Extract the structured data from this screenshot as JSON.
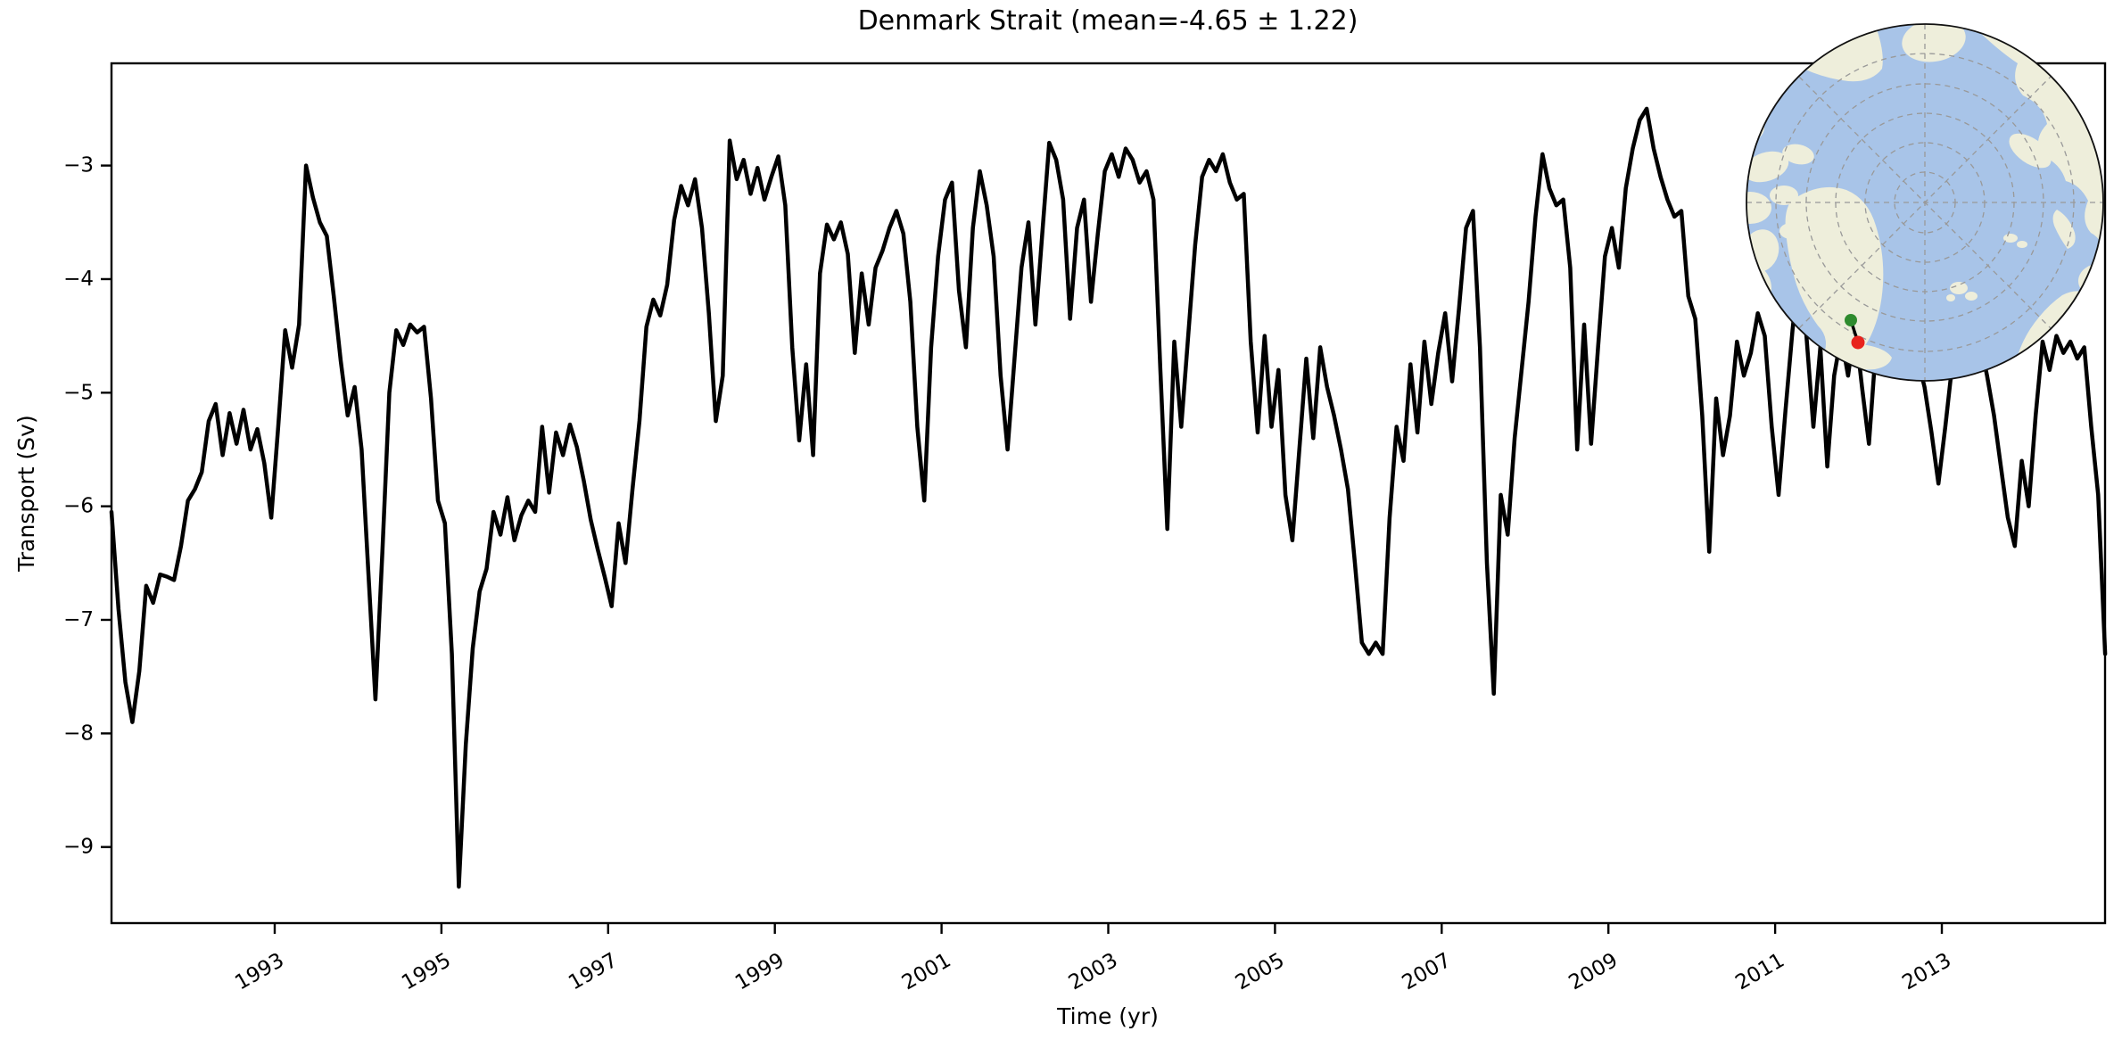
{
  "figure": {
    "background": "#ffffff",
    "title": "Denmark Strait (mean=-4.65 ± 1.22)"
  },
  "chart_data": {
    "type": "line",
    "title": "Denmark Strait (mean=-4.65 ± 1.22)",
    "xlabel": "Time (yr)",
    "ylabel": "Transport (Sv)",
    "legend": "none",
    "grid": "off",
    "line_color": "#000000",
    "line_width": 4.5,
    "xlim": [
      1991.042,
      2014.958
    ],
    "ylim": [
      -9.67,
      -2.1
    ],
    "x_start": 1991.042,
    "x_step": 0.0833333,
    "x_unit": "decimal year, monthly resolution Jan 1991 - Dec 2014",
    "xticks": [
      {
        "value": 1993,
        "label": "1993"
      },
      {
        "value": 1995,
        "label": "1995"
      },
      {
        "value": 1997,
        "label": "1997"
      },
      {
        "value": 1999,
        "label": "1999"
      },
      {
        "value": 2001,
        "label": "2001"
      },
      {
        "value": 2003,
        "label": "2003"
      },
      {
        "value": 2005,
        "label": "2005"
      },
      {
        "value": 2007,
        "label": "2007"
      },
      {
        "value": 2009,
        "label": "2009"
      },
      {
        "value": 2011,
        "label": "2011"
      },
      {
        "value": 2013,
        "label": "2013"
      }
    ],
    "yticks": [
      {
        "value": -3,
        "label": "−3"
      },
      {
        "value": -4,
        "label": "−4"
      },
      {
        "value": -5,
        "label": "−5"
      },
      {
        "value": -6,
        "label": "−6"
      },
      {
        "value": -7,
        "label": "−7"
      },
      {
        "value": -8,
        "label": "−8"
      },
      {
        "value": -9,
        "label": "−9"
      }
    ],
    "values": [
      -6.05,
      -6.9,
      -7.55,
      -7.9,
      -7.45,
      -6.7,
      -6.85,
      -6.6,
      -6.62,
      -6.65,
      -6.35,
      -5.95,
      -5.85,
      -5.7,
      -5.25,
      -5.1,
      -5.55,
      -5.18,
      -5.45,
      -5.15,
      -5.5,
      -5.32,
      -5.62,
      -6.1,
      -5.3,
      -4.45,
      -4.78,
      -4.4,
      -3.0,
      -3.28,
      -3.5,
      -3.62,
      -4.15,
      -4.72,
      -5.2,
      -4.95,
      -5.5,
      -6.6,
      -7.7,
      -6.4,
      -5.0,
      -4.45,
      -4.58,
      -4.4,
      -4.47,
      -4.42,
      -5.05,
      -5.95,
      -6.15,
      -7.3,
      -9.35,
      -8.1,
      -7.25,
      -6.75,
      -6.55,
      -6.05,
      -6.25,
      -5.92,
      -6.3,
      -6.08,
      -5.95,
      -6.05,
      -5.3,
      -5.88,
      -5.35,
      -5.55,
      -5.28,
      -5.48,
      -5.78,
      -6.12,
      -6.38,
      -6.62,
      -6.88,
      -6.15,
      -6.5,
      -5.85,
      -5.25,
      -4.42,
      -4.18,
      -4.32,
      -4.05,
      -3.48,
      -3.18,
      -3.35,
      -3.12,
      -3.55,
      -4.3,
      -5.25,
      -4.85,
      -2.78,
      -3.12,
      -2.95,
      -3.25,
      -3.02,
      -3.3,
      -3.1,
      -2.92,
      -3.35,
      -4.6,
      -5.42,
      -4.75,
      -5.55,
      -3.95,
      -3.52,
      -3.65,
      -3.5,
      -3.78,
      -4.65,
      -3.95,
      -4.4,
      -3.9,
      -3.75,
      -3.55,
      -3.4,
      -3.6,
      -4.2,
      -5.3,
      -5.95,
      -4.6,
      -3.8,
      -3.3,
      -3.15,
      -4.1,
      -4.6,
      -3.55,
      -3.05,
      -3.35,
      -3.8,
      -4.85,
      -5.5,
      -4.7,
      -3.9,
      -3.5,
      -4.4,
      -3.6,
      -2.8,
      -2.95,
      -3.3,
      -4.35,
      -3.55,
      -3.3,
      -4.2,
      -3.6,
      -3.05,
      -2.9,
      -3.1,
      -2.85,
      -2.95,
      -3.15,
      -3.05,
      -3.3,
      -4.8,
      -6.2,
      -4.55,
      -5.3,
      -4.5,
      -3.7,
      -3.1,
      -2.95,
      -3.05,
      -2.9,
      -3.15,
      -3.3,
      -3.25,
      -4.55,
      -5.35,
      -4.5,
      -5.3,
      -4.8,
      -5.9,
      -6.3,
      -5.5,
      -4.7,
      -5.4,
      -4.6,
      -4.95,
      -5.2,
      -5.5,
      -5.85,
      -6.5,
      -7.2,
      -7.3,
      -7.2,
      -7.3,
      -6.1,
      -5.3,
      -5.6,
      -4.75,
      -5.35,
      -4.55,
      -5.1,
      -4.65,
      -4.3,
      -4.9,
      -4.25,
      -3.55,
      -3.4,
      -4.6,
      -6.5,
      -7.65,
      -5.9,
      -6.25,
      -5.4,
      -4.8,
      -4.2,
      -3.45,
      -2.9,
      -3.2,
      -3.35,
      -3.3,
      -3.9,
      -5.5,
      -4.4,
      -5.45,
      -4.6,
      -3.8,
      -3.55,
      -3.9,
      -3.2,
      -2.85,
      -2.6,
      -2.5,
      -2.85,
      -3.1,
      -3.3,
      -3.45,
      -3.4,
      -4.15,
      -4.35,
      -5.2,
      -6.4,
      -5.05,
      -5.55,
      -5.2,
      -4.55,
      -4.85,
      -4.65,
      -4.3,
      -4.5,
      -5.3,
      -5.9,
      -5.15,
      -4.45,
      -3.85,
      -4.5,
      -5.3,
      -4.6,
      -5.65,
      -4.85,
      -4.5,
      -4.85,
      -4.4,
      -4.95,
      -5.45,
      -4.6,
      -4.2,
      -4.65,
      -4.35,
      -4.7,
      -4.4,
      -4.7,
      -4.95,
      -5.35,
      -5.8,
      -5.3,
      -4.75,
      -4.4,
      -4.7,
      -4.3,
      -4.55,
      -4.85,
      -5.2,
      -5.65,
      -6.1,
      -6.35,
      -5.6,
      -6.0,
      -5.2,
      -4.55,
      -4.8,
      -4.5,
      -4.65,
      -4.55,
      -4.7,
      -4.6,
      -5.3,
      -5.9,
      -7.3
    ]
  },
  "inset_map": {
    "projection": "north-polar",
    "ocean_color": "#a8c4e8",
    "land_color": "#eeeedb",
    "graticule_color": "#999999",
    "border_color": "#111111",
    "section_line_color": "#000000",
    "markers": [
      {
        "name": "section-north-marker",
        "color": "#2e8b2e",
        "x": 2075,
        "y": 359
      },
      {
        "name": "section-south-marker",
        "color": "#e8231d",
        "x": 2083,
        "y": 384
      }
    ]
  }
}
